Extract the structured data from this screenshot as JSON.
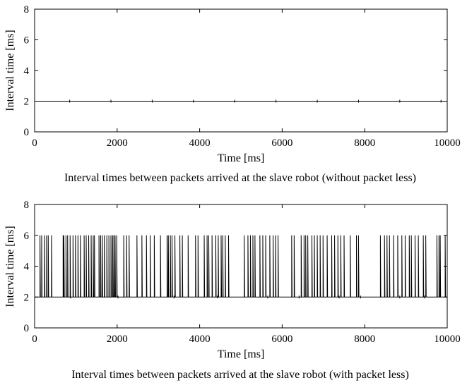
{
  "chart_data": [
    {
      "type": "line",
      "caption": "Interval times between packets arrived at the slave robot (without packet less)",
      "xlabel": "Time [ms]",
      "ylabel": "Interval time [ms]",
      "xlim": [
        0,
        10000
      ],
      "ylim": [
        0,
        8
      ],
      "xticks": [
        0,
        2000,
        4000,
        6000,
        8000,
        10000
      ],
      "yticks": [
        0,
        2,
        4,
        6,
        8
      ],
      "grid": false,
      "baseline": 2,
      "series": [
        {
          "spike_times": [],
          "spike_value": 6,
          "minor_blip_times": [
            850,
            1850,
            2850,
            3850,
            4850,
            5850,
            6850,
            7850,
            8850,
            9850
          ]
        }
      ]
    },
    {
      "type": "line",
      "caption": "Interval times between packets arrived at the slave robot (with packet less)",
      "xlabel": "Time [ms]",
      "ylabel": "Interval time [ms]",
      "xlim": [
        0,
        10000
      ],
      "ylim": [
        0,
        8
      ],
      "xticks": [
        0,
        2000,
        4000,
        6000,
        8000,
        10000
      ],
      "yticks": [
        0,
        2,
        4,
        6,
        8
      ],
      "grid": false,
      "baseline": 2,
      "series": [
        {
          "spike_value": 6,
          "spike_times": [
            130,
            170,
            240,
            290,
            330,
            410,
            690,
            710,
            760,
            800,
            860,
            930,
            990,
            1050,
            1110,
            1200,
            1250,
            1310,
            1370,
            1420,
            1450,
            1560,
            1600,
            1640,
            1690,
            1750,
            1800,
            1850,
            1890,
            1920,
            1950,
            1990,
            2160,
            2230,
            2290,
            2480,
            2600,
            2710,
            2800,
            2900,
            3050,
            3210,
            3240,
            3290,
            3330,
            3400,
            3520,
            3580,
            3720,
            3900,
            3960,
            4110,
            4180,
            4220,
            4300,
            4390,
            4450,
            4520,
            4560,
            4620,
            4700,
            5080,
            5170,
            5230,
            5290,
            5340,
            5460,
            5530,
            5600,
            5700,
            5780,
            5840,
            5900,
            6230,
            6290,
            6460,
            6530,
            6570,
            6620,
            6720,
            6780,
            6850,
            6920,
            6990,
            7090,
            7200,
            7270,
            7350,
            7420,
            7500,
            7650,
            7800,
            7850,
            8380,
            8480,
            8540,
            8600,
            8700,
            8800,
            8900,
            8980,
            9080,
            9130,
            9220,
            9300,
            9420,
            9480,
            9750,
            9800,
            9830,
            9950
          ],
          "minor_blip_times": [
            870,
            2020,
            3380,
            4430,
            5650,
            6410,
            7380,
            7900,
            8850,
            9450
          ]
        }
      ]
    }
  ]
}
